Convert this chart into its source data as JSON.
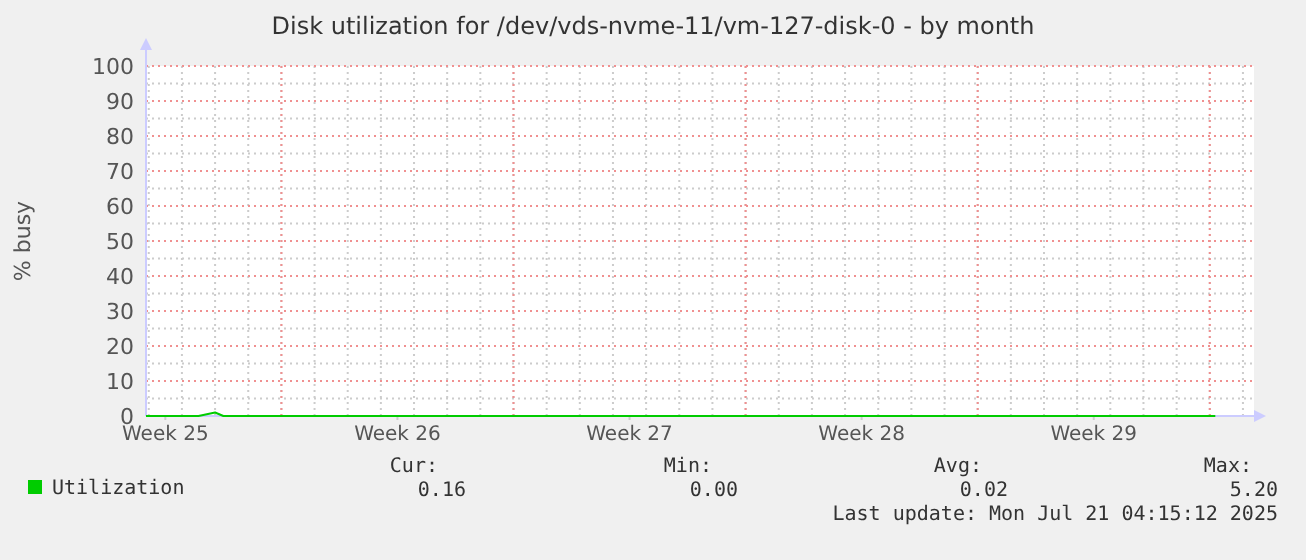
{
  "chart_data": {
    "type": "line",
    "title": "Disk utilization for /dev/vds-nvme-11/vm-127-disk-0 - by month",
    "ylabel": "% busy",
    "x": [
      "2025-06-18T22:00",
      "2025-06-19T12:00",
      "2025-06-20T12:00",
      "2025-06-21T00:00",
      "2025-06-21T06:00",
      "2025-06-22T00:00",
      "2025-06-25T00:00",
      "2025-06-30T00:00",
      "2025-07-05T00:00",
      "2025-07-10T00:00",
      "2025-07-15T00:00",
      "2025-07-20T00:00",
      "2025-07-21T04:00"
    ],
    "series": [
      {
        "name": "Utilization",
        "color": "#00cc00",
        "values": [
          0,
          0,
          0,
          1,
          0,
          0,
          0,
          0,
          0,
          0,
          0,
          0,
          0
        ]
      }
    ],
    "xlim": [
      "2025-06-18T22:00",
      "2025-07-22T08:00"
    ],
    "xticks": [
      {
        "value": "2025-06-19T12:00",
        "label": "Week 25"
      },
      {
        "value": "2025-06-26T12:00",
        "label": "Week 26"
      },
      {
        "value": "2025-07-03T12:00",
        "label": "Week 27"
      },
      {
        "value": "2025-07-10T12:00",
        "label": "Week 28"
      },
      {
        "value": "2025-07-17T12:00",
        "label": "Week 29"
      }
    ],
    "ylim": [
      0,
      100
    ],
    "yticks": [
      0,
      10,
      20,
      30,
      40,
      50,
      60,
      70,
      80,
      90,
      100
    ],
    "grid": true,
    "legend": "bottom",
    "annotations": [
      "Cur:",
      "Min:",
      "Avg:",
      "Max:",
      "0.16",
      "0.00",
      "0.02",
      "5.20",
      "Last update: Mon Jul 21 04:15:12 2025"
    ]
  }
}
